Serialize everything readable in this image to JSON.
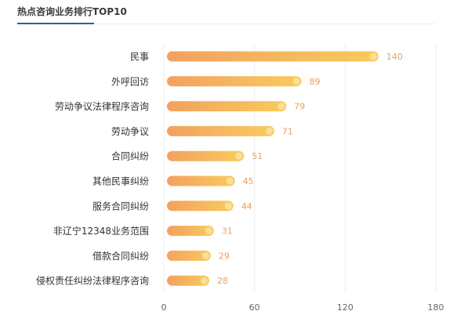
{
  "title": "热点咨询业务排行TOP10",
  "colors": {
    "bar_start": "#f3a15f",
    "bar_end": "#f9cb5c",
    "value_label": "#e8a062",
    "category_label": "#333333",
    "tick_label": "#666666",
    "grid": "#eeeeee",
    "title_underline": "#2e5f9e"
  },
  "chart_data": {
    "type": "bar",
    "orientation": "horizontal",
    "categories": [
      "民事",
      "外呼回访",
      "劳动争议法律程序咨询",
      "劳动争议",
      "合同纠纷",
      "其他民事纠纷",
      "服务合同纠纷",
      "非辽宁12348业务范围",
      "借款合同纠纷",
      "侵权责任纠纷法律程序咨询"
    ],
    "values": [
      140,
      89,
      79,
      71,
      51,
      45,
      44,
      31,
      29,
      28
    ],
    "x_ticks": [
      "0",
      "60",
      "120",
      "180"
    ],
    "xlim": [
      0,
      180
    ],
    "grid": true,
    "data_labels": true
  }
}
